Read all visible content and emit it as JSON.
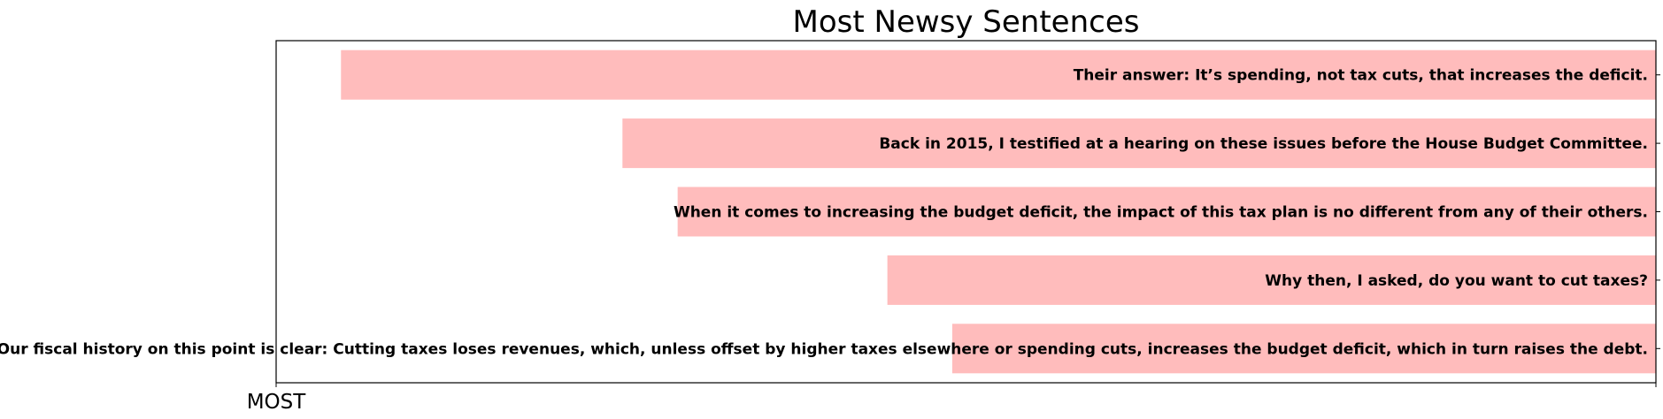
{
  "chart_data": {
    "type": "bar",
    "orientation": "horizontal",
    "title": "Most Newsy Sentences",
    "xlabel": "",
    "ylabel": "",
    "xlim": [
      0,
      1
    ],
    "x_tick_labels": [
      "MOST",
      ""
    ],
    "bar_color": "#ffbcbc",
    "grid": false,
    "categories": [
      "Their answer: It’s spending, not tax cuts, that increases the deficit.",
      "Back in 2015, I testified at a hearing on these issues before the House Budget Committee.",
      "When it comes to increasing the budget deficit, the impact of this tax plan is no different from any of their others.",
      "Why then, I asked, do you want to cut taxes?",
      "Our fiscal history on this point is clear: Cutting taxes loses revenues, which, unless offset by higher taxes elsewhere or spending cuts, increases the budget deficit, which in turn raises the debt."
    ],
    "values": [
      0.953,
      0.749,
      0.709,
      0.557,
      0.51
    ]
  }
}
